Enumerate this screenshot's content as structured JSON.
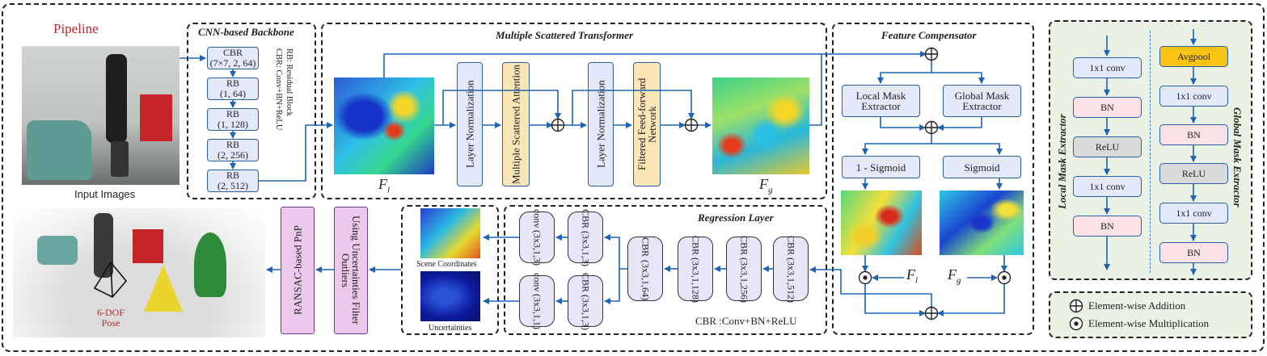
{
  "pipeline_label": "Pipeline",
  "input_images_label": "Input Images",
  "backbone": {
    "title": "CNN-based Backbone",
    "blocks": [
      {
        "name": "CBR",
        "params": "(7×7, 2, 64)"
      },
      {
        "name": "RB",
        "params": "(1, 64)"
      },
      {
        "name": "RB",
        "params": "(1, 128)"
      },
      {
        "name": "RB",
        "params": "(2, 256)"
      },
      {
        "name": "RB",
        "params": "(2, 512)"
      }
    ],
    "legend_cbr": "CBR: Conv+BN+ReLU",
    "legend_rb": "RB: Residual Block"
  },
  "transformer": {
    "title": "Multiple Scattered Transformer",
    "layer_norm_1": "Layer Normalization",
    "msa": "Multiple Scattered Attention",
    "layer_norm_2": "Layer Normalization",
    "ffn": "Filtered Feed-forward Network",
    "fl_label": "F",
    "fl_sub": "l",
    "fg_label": "F",
    "fg_sub": "g"
  },
  "compensator": {
    "title": "Feature Compensator",
    "local_mask": "Local Mask Extractor",
    "global_mask": "Global Mask Extractor",
    "one_minus_sigmoid": "1 - Sigmoid",
    "sigmoid": "Sigmoid",
    "fl_label": "F",
    "fl_sub": "l",
    "fg_label": "F",
    "fg_sub": "g"
  },
  "extractors": {
    "local_title": "Local Mask Extractor",
    "global_title": "Global Mask Extractor",
    "local_blocks": [
      "1x1 conv",
      "BN",
      "ReLU",
      "1x1 conv",
      "BN"
    ],
    "global_blocks": [
      "Avgpool",
      "1x1 conv",
      "BN",
      "ReLU",
      "1x1 conv",
      "BN"
    ]
  },
  "legend": {
    "addition": "Element-wise Addition",
    "multiplication": "Element-wise Multiplication"
  },
  "regression": {
    "title": "Regression Layer",
    "blocks": [
      {
        "name": "CBR",
        "params": "(3x3,1,512)"
      },
      {
        "name": "CBR",
        "params": "(3x3,1,256)"
      },
      {
        "name": "CBR",
        "params": "(3x3,1,128)"
      },
      {
        "name": "CBR",
        "params": "(3x3,1,64)"
      },
      {
        "name": "CBR",
        "params": "(3x3,1,3)"
      },
      {
        "name": "conv",
        "params": "(3x3,1,3)"
      },
      {
        "name": "CBR",
        "params": "(3x3,1,3)"
      },
      {
        "name": "conv",
        "params": "(3x3,1,1)"
      }
    ],
    "footer": "CBR :Conv+BN+ReLU"
  },
  "outputs": {
    "scene_coordinates": "Scene Coordinates",
    "uncertainties": "Uncertainties"
  },
  "filter_box": "Using Uncertainties Filter Outliers",
  "ransac_box": "RANSAC-based PnP",
  "pose_label": "6-DOF Pose",
  "colors": {
    "accent_red": "#c0262d",
    "wire_blue": "#1f63b5",
    "panel_green": "#e9f2e4"
  }
}
